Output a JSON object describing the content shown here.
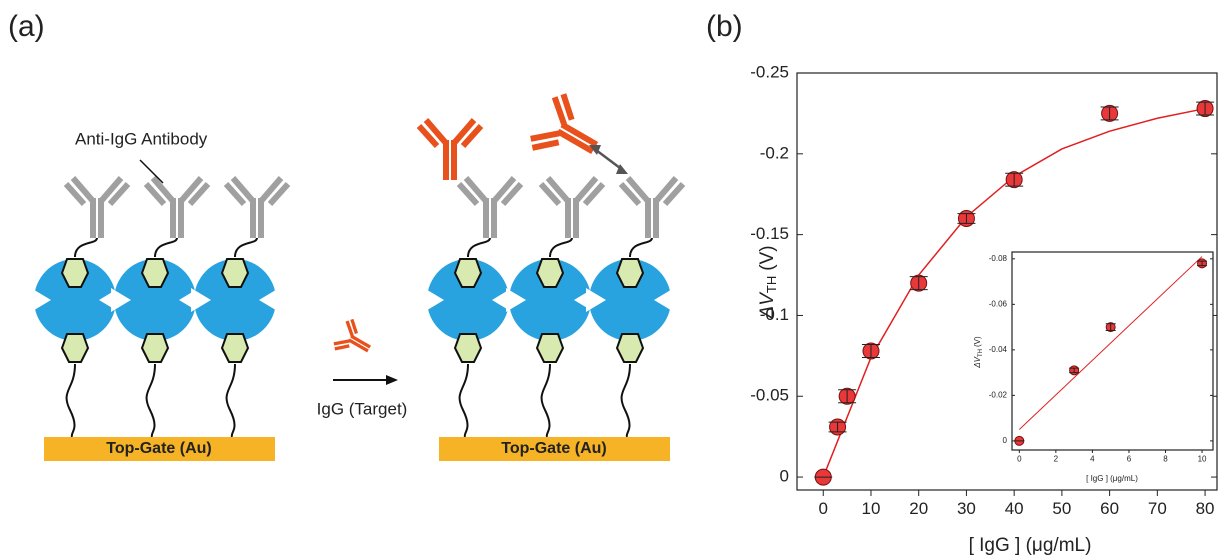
{
  "panel_labels": [
    "(a)",
    "(b)"
  ],
  "diagram": {
    "antibody_label": "Anti-IgG Antibody",
    "target_label": "IgG (Target)",
    "gate_labels": [
      "Top-Gate (Au)",
      "Top-Gate (Au)"
    ]
  },
  "chart_data": [
    {
      "type": "scatter",
      "ylabel": "ΔV",
      "ylabel_sub": "TH",
      "ylabel_unit": "(V)",
      "xlabel": "[ IgG ] (μg/mL)",
      "x": [
        0,
        3,
        5,
        10,
        20,
        30,
        40,
        60,
        80
      ],
      "values": [
        0,
        -0.031,
        -0.05,
        -0.078,
        -0.12,
        -0.16,
        -0.184,
        -0.225,
        -0.228
      ],
      "errors": [
        0,
        0.003,
        0.004,
        0.004,
        0.004,
        0.003,
        0.004,
        0.004,
        0.004
      ],
      "color": "#e8383a",
      "fit": {
        "x": [
          0,
          10,
          20,
          30,
          40,
          50,
          60,
          70,
          80
        ],
        "values": [
          0,
          -0.074,
          -0.125,
          -0.161,
          -0.186,
          -0.203,
          -0.214,
          -0.222,
          -0.228
        ],
        "color": "#e02020"
      },
      "xlim": [
        -5.5,
        82.5
      ],
      "xticks": [
        0,
        10,
        20,
        30,
        40,
        50,
        60,
        70,
        80
      ],
      "ylim": [
        0.008,
        -0.25
      ],
      "yticks": [
        0,
        -0.05,
        -0.1,
        -0.15,
        -0.2,
        -0.25
      ]
    },
    {
      "type": "scatter",
      "ylabel": "ΔV",
      "ylabel_sub": "TH",
      "ylabel_unit": "(V)",
      "xlabel": "[ IgG ] (μg/mL)",
      "x": [
        0,
        3,
        5,
        10
      ],
      "values": [
        0,
        -0.031,
        -0.05,
        -0.078
      ],
      "errors": [
        0,
        0.001,
        0.0015,
        0.001
      ],
      "color": "#e8383a",
      "fit": {
        "x": [
          0,
          10
        ],
        "values": [
          -0.005,
          -0.081
        ],
        "color": "#e02020"
      },
      "xlim": [
        -0.4,
        10.6
      ],
      "xticks": [
        0,
        2,
        4,
        6,
        8,
        10
      ],
      "ylim": [
        0.004,
        -0.083
      ],
      "yticks": [
        0,
        -0.02,
        -0.04,
        -0.06,
        -0.08
      ]
    }
  ]
}
